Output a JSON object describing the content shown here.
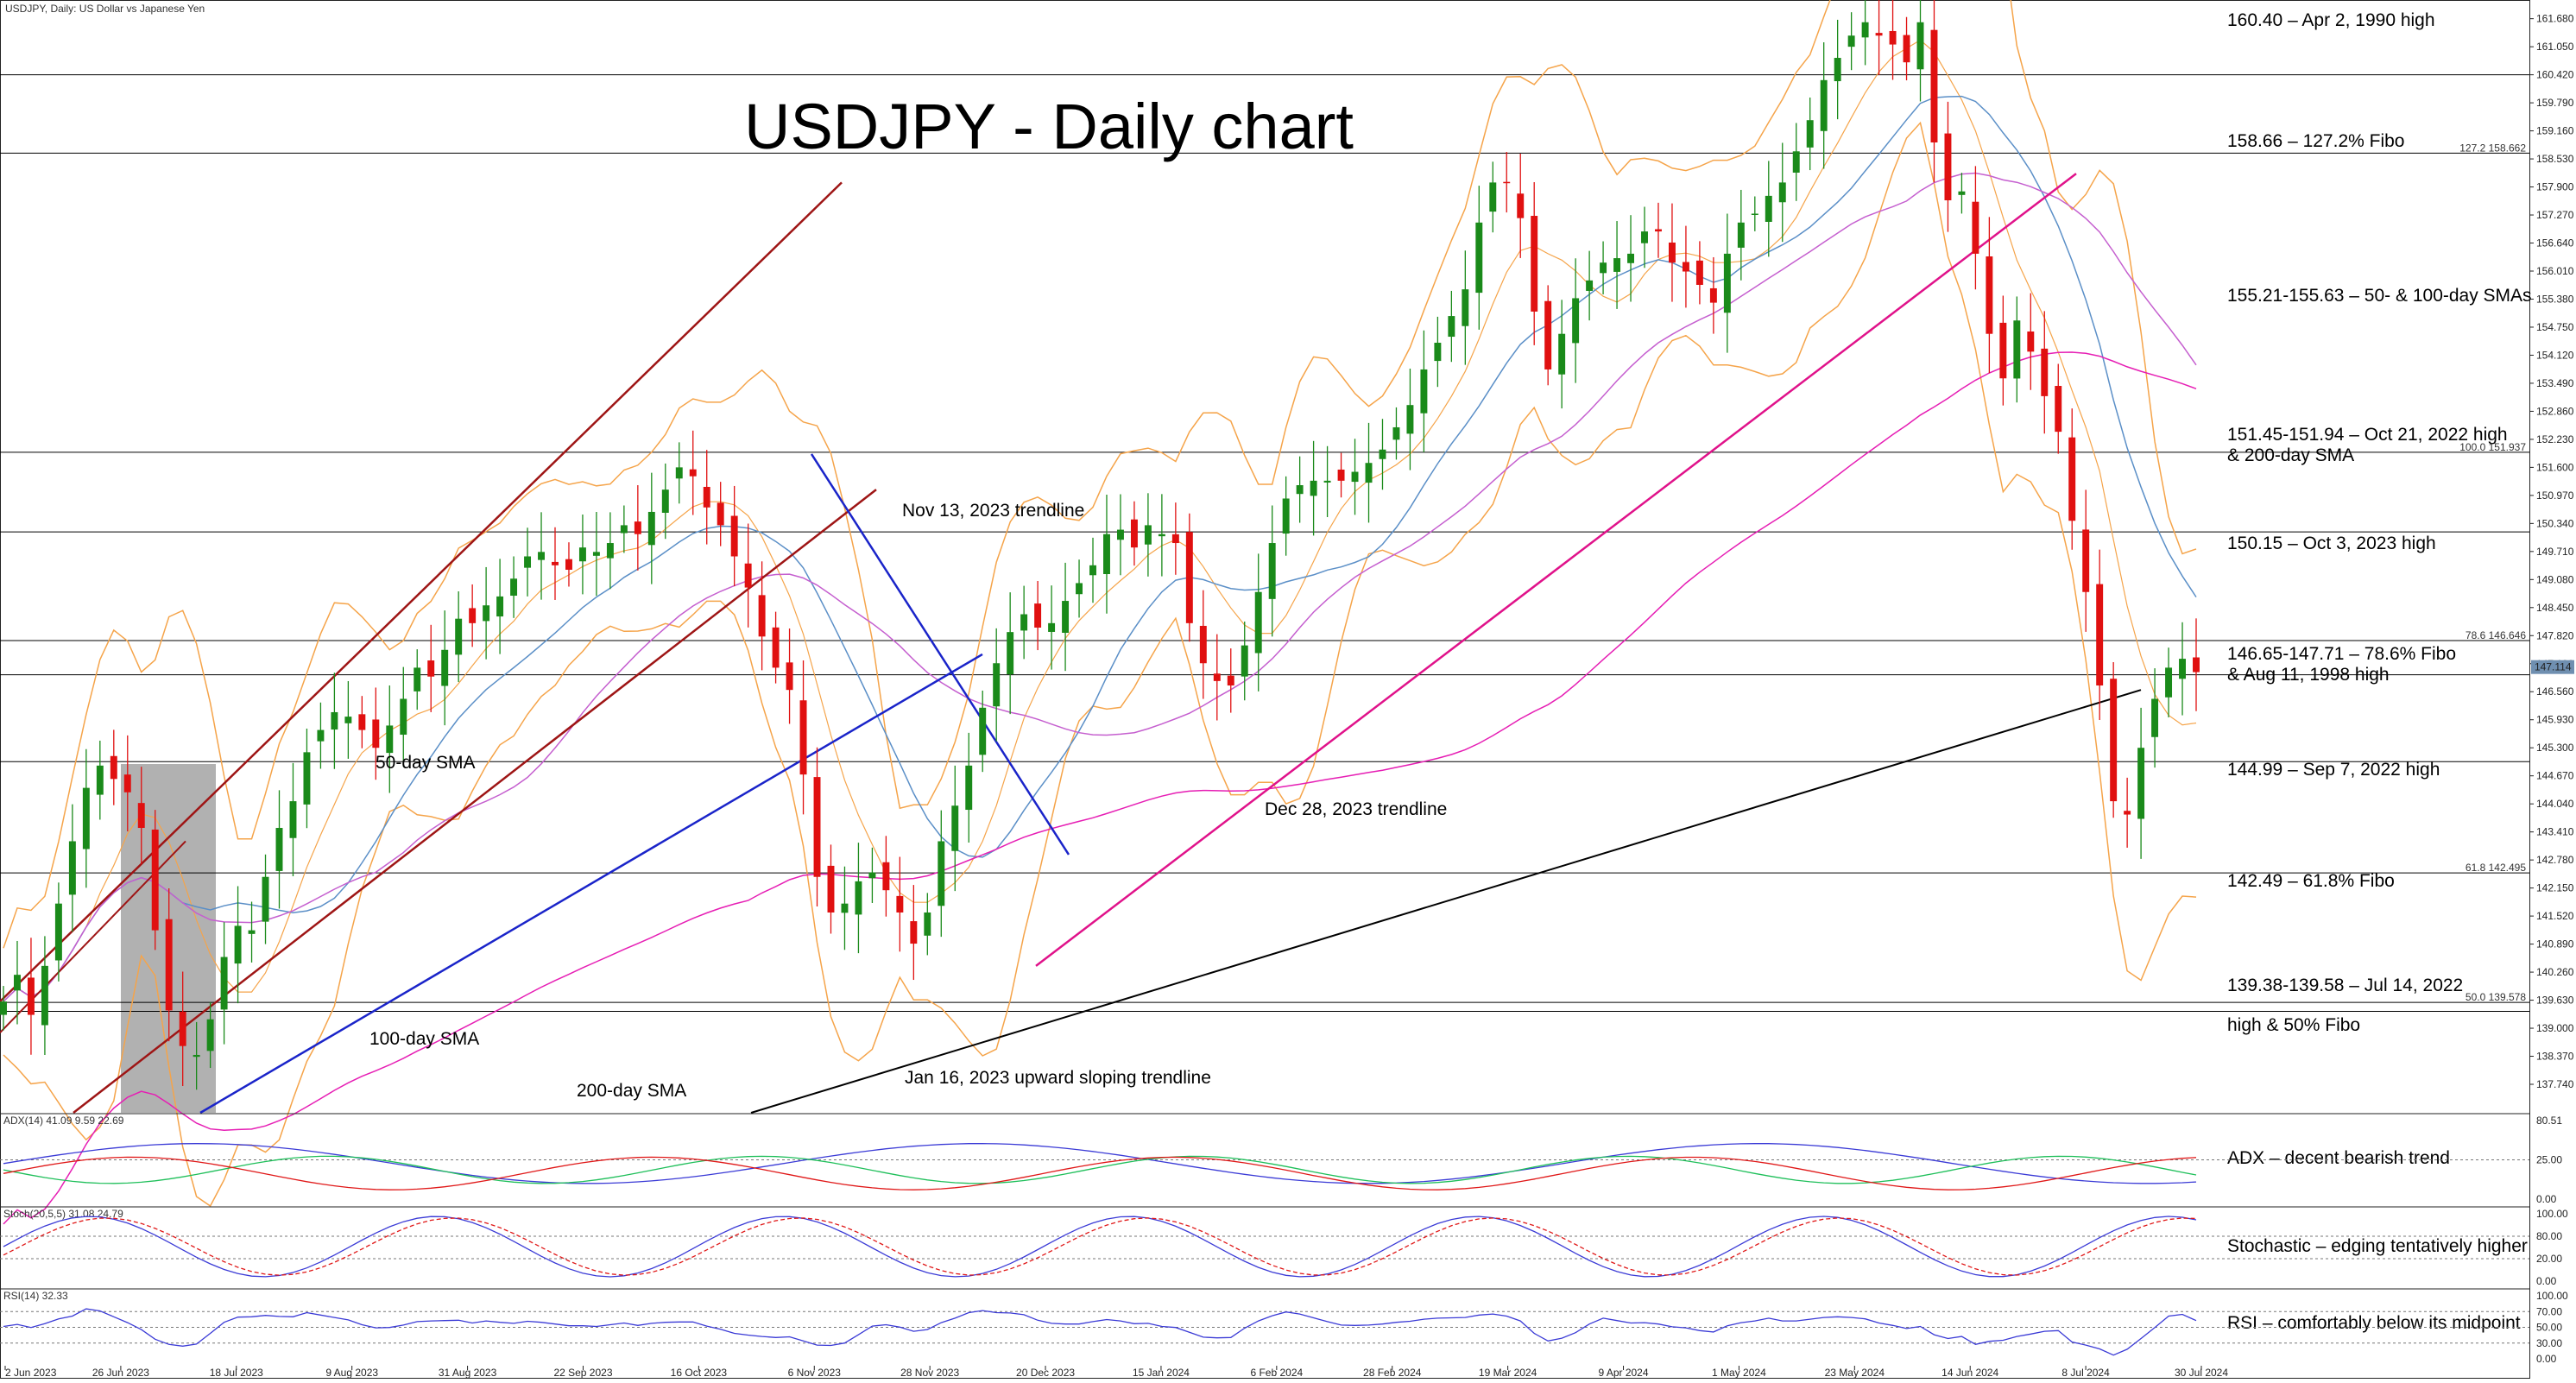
{
  "window": {
    "symbol_header": "USDJPY, Daily:  US Dollar vs Japanese Yen"
  },
  "chart_data": {
    "type": "candlestick",
    "title": "USDJPY - Daily chart",
    "symbol": "USDJPY",
    "timeframe": "Daily",
    "price_axis": {
      "range": [
        137.1,
        162.1
      ],
      "ticks": [
        "161.680",
        "161.050",
        "160.420",
        "159.790",
        "159.160",
        "158.530",
        "157.900",
        "157.270",
        "156.640",
        "156.010",
        "155.380",
        "154.750",
        "154.120",
        "153.490",
        "152.860",
        "152.230",
        "151.600",
        "150.970",
        "150.340",
        "149.710",
        "149.080",
        "148.450",
        "147.820",
        "147.190",
        "146.560",
        "145.930",
        "145.300",
        "144.670",
        "144.040",
        "143.410",
        "142.780",
        "142.150",
        "141.520",
        "140.890",
        "140.260",
        "139.630",
        "139.000",
        "138.370",
        "137.740"
      ],
      "current_price_label": "147.114"
    },
    "date_axis": {
      "labels": [
        "2 Jun 2023",
        "26 Jun 2023",
        "18 Jul 2023",
        "9 Aug 2023",
        "31 Aug 2023",
        "22 Sep 2023",
        "16 Oct 2023",
        "6 Nov 2023",
        "28 Nov 2023",
        "20 Dec 2023",
        "15 Jan 2024",
        "6 Feb 2024",
        "28 Feb 2024",
        "19 Mar 2024",
        "9 Apr 2024",
        "1 May 2024",
        "23 May 2024",
        "14 Jun 2024",
        "8 Jul 2024",
        "30 Jul 2024"
      ]
    },
    "close_series": [
      139.6,
      140.2,
      139.3,
      140.4,
      141.8,
      143.2,
      144.4,
      144.9,
      144.6,
      144.3,
      143.5,
      141.2,
      139.4,
      138.6,
      138.4,
      139.2,
      140.6,
      141.3,
      141.2,
      142.4,
      143.5,
      144.1,
      145.2,
      145.7,
      146.1,
      146.0,
      145.7,
      145.3,
      145.8,
      146.4,
      147.1,
      146.9,
      147.5,
      148.2,
      148.1,
      148.5,
      148.7,
      149.1,
      149.6,
      149.7,
      149.4,
      149.3,
      149.8,
      149.7,
      149.9,
      150.3,
      150.1,
      150.6,
      151.1,
      151.6,
      151.4,
      150.7,
      150.3,
      149.6,
      148.9,
      147.8,
      147.1,
      146.6,
      144.7,
      142.4,
      141.6,
      141.8,
      142.3,
      142.5,
      142.1,
      141.6,
      140.9,
      141.6,
      143.2,
      144.0,
      144.9,
      146.2,
      147.2,
      147.9,
      148.3,
      148.0,
      148.1,
      148.6,
      149.0,
      149.4,
      150.1,
      150.2,
      149.8,
      150.3,
      150.1,
      149.9,
      148.1,
      147.2,
      146.8,
      146.7,
      147.6,
      148.8,
      149.9,
      150.9,
      151.2,
      151.3,
      151.3,
      151.3,
      151.5,
      151.7,
      152.0,
      152.5,
      153.0,
      153.8,
      154.4,
      155.0,
      155.6,
      157.1,
      158.0,
      158.0,
      157.2,
      155.1,
      153.8,
      154.6,
      155.4,
      155.8,
      156.2,
      156.3,
      156.4,
      156.9,
      156.9,
      156.2,
      156.0,
      155.7,
      155.3,
      156.4,
      157.1,
      157.3,
      157.7,
      158.0,
      158.7,
      159.4,
      160.3,
      160.8,
      161.3,
      161.6,
      161.3,
      161.1,
      160.7,
      161.6,
      158.9,
      157.6,
      157.8,
      156.4,
      154.6,
      153.6,
      154.9,
      154.2,
      153.2,
      152.4,
      150.4,
      148.8,
      146.7,
      144.1,
      143.8,
      145.3,
      146.4,
      147.1,
      147.3,
      147.0
    ],
    "overlays": [
      {
        "name": "50-day SMA",
        "label": "50-day SMA",
        "color": "#5b8fc7"
      },
      {
        "name": "100-day SMA",
        "label": "100-day SMA",
        "color": "#c55fcf"
      },
      {
        "name": "200-day SMA",
        "label": "200-day SMA",
        "color": "#e61eb4"
      },
      {
        "name": "Bollinger Bands",
        "color": "#f5a44a"
      }
    ],
    "trendlines": [
      {
        "label": "Nov 13, 2023 trendline",
        "color": "#1a24c9"
      },
      {
        "label": "Dec 28, 2023 trendline",
        "color": "#e0128a"
      },
      {
        "label": "Jan 16, 2023 upward sloping trendline",
        "color": "#000000"
      }
    ],
    "levels": [
      {
        "price": 160.4,
        "text": "160.40 – Apr 2, 1990 high"
      },
      {
        "price": 158.66,
        "text": "158.66 – 127.2% Fibo",
        "fibo_tag": "127.2 158.662"
      },
      {
        "price": 155.4,
        "text": "155.21-155.63 – 50- & 100-day SMAs"
      },
      {
        "price": 151.94,
        "text": "151.45-151.94 – Oct 21, 2022 high",
        "text2": "& 200-day SMA",
        "fibo_tag": "100.0 151.937"
      },
      {
        "price": 150.15,
        "text": "150.15 – Oct 3, 2023 high"
      },
      {
        "price": 147.71,
        "text": "146.65-147.71 – 78.6% Fibo",
        "text2": "& Aug 11, 1998 high",
        "fibo_tag": "78.6 146.646"
      },
      {
        "price": 144.99,
        "text": "144.99 – Sep 7, 2022 high"
      },
      {
        "price": 142.49,
        "text": "142.49 – 61.8% Fibo",
        "fibo_tag": "61.8 142.495"
      },
      {
        "price": 139.58,
        "text": "139.38-139.58 – Jul 14, 2022",
        "text2": "high & 50% Fibo",
        "fibo_tag": "50.0 139.578"
      }
    ],
    "indicators": [
      {
        "name": "ADX",
        "header": "ADX(14) 41.09 9.59 22.69",
        "annotation": "ADX – decent bearish trend",
        "axis_labels": [
          "80.51",
          "25.00",
          "0.00"
        ]
      },
      {
        "name": "Stochastic",
        "header": "Stoch(20,5,5) 31.08 24.79",
        "annotation": "Stochastic – edging tentatively higher",
        "axis_labels": [
          "100.00",
          "80.00",
          "20.00",
          "0.00"
        ]
      },
      {
        "name": "RSI",
        "header": "RSI(14) 32.33",
        "annotation": "RSI – comfortably below its midpoint",
        "axis_labels": [
          "100.00",
          "70.00",
          "50.00",
          "30.00",
          "0.00"
        ]
      }
    ],
    "colors": {
      "bull": "#1a8a1a",
      "bear": "#e01010",
      "shade": "#a9a9a9"
    }
  }
}
